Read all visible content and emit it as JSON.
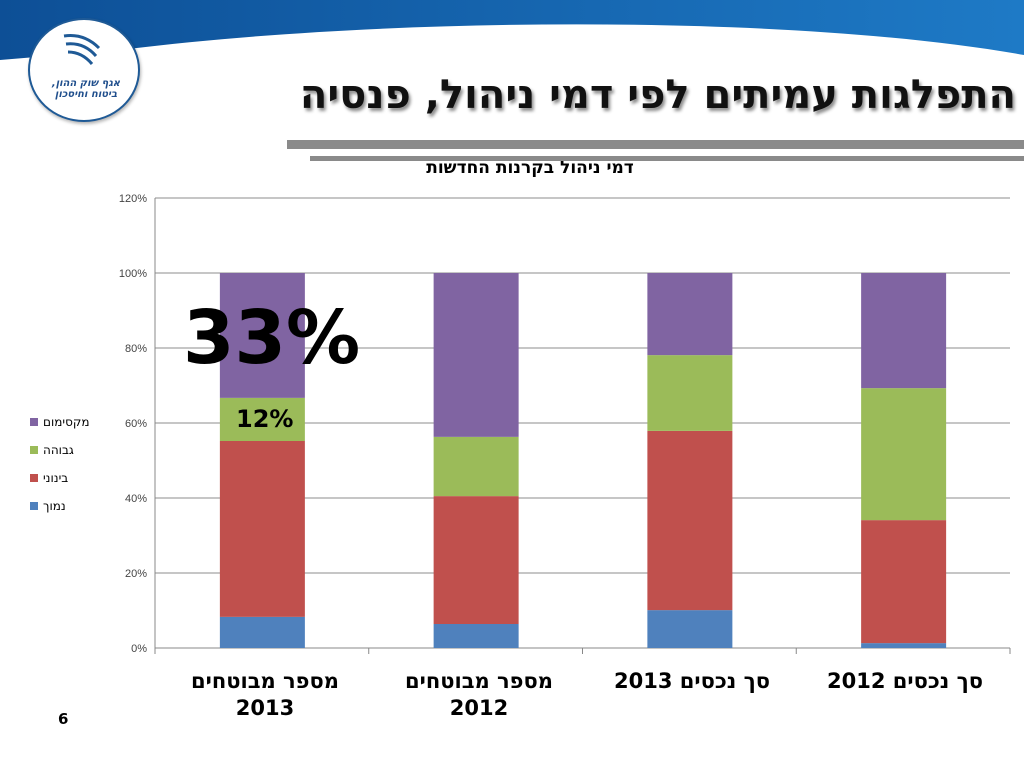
{
  "slide": {
    "title": "התפלגות עמיתים לפי דמי ניהול, פנסיה",
    "logo_text": "אגף שוק ההון, ביטוח וחיסכון",
    "page_number": "6",
    "highlight_large": "33%",
    "highlight_small": "12%"
  },
  "chart_data": {
    "type": "bar",
    "stacked": true,
    "title": "דמי ניהול בקרנות החדשות",
    "categories": [
      "מספר מבוטחים 2013",
      "מספר מבוטחים 2012",
      "סך נכסים 2013",
      "סך נכסים 2012"
    ],
    "series": [
      {
        "name": "נמוך",
        "color": "#4f81bd",
        "values": [
          8.3,
          6.4,
          10.1,
          1.3
        ]
      },
      {
        "name": "בינוני",
        "color": "#c0504d",
        "values": [
          46.9,
          34.1,
          47.8,
          32.8
        ]
      },
      {
        "name": "גבוהה",
        "color": "#9bbb59",
        "values": [
          11.5,
          15.8,
          20.2,
          35.2
        ]
      },
      {
        "name": "מקסימום",
        "color": "#8064a2",
        "values": [
          33.3,
          43.7,
          21.9,
          30.7
        ]
      }
    ],
    "ylim": [
      0,
      120
    ],
    "yticks": [
      "0%",
      "20%",
      "40%",
      "60%",
      "80%",
      "100%",
      "120%"
    ],
    "grid": true,
    "legend": "left"
  }
}
